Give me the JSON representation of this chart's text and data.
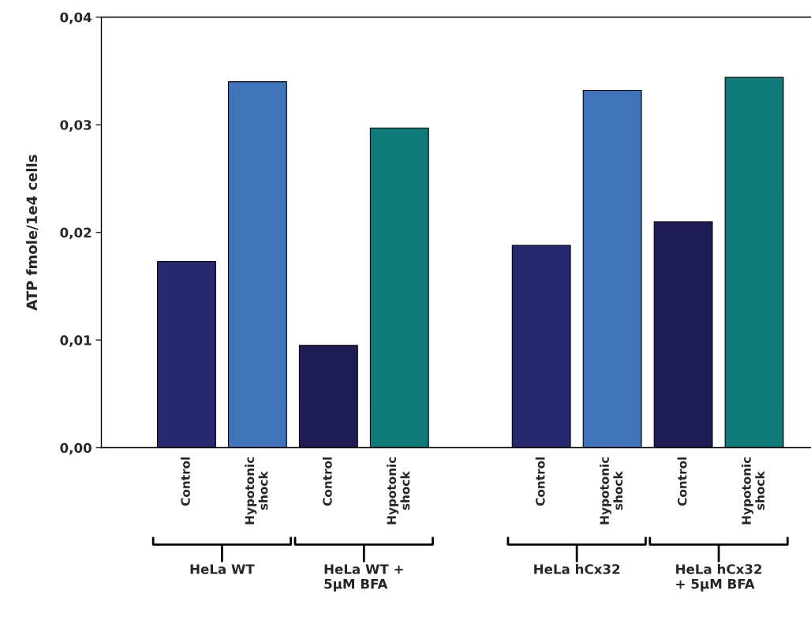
{
  "chart_data": {
    "type": "bar",
    "ylabel": "ATP fmole/1e4 cells",
    "categories": [
      "Control",
      "Hypotonic\nshock",
      "Control",
      "Hypotonic\nshock",
      null,
      "Control",
      "Hypotonic\nshock",
      "Control",
      "Hypotonic\nshock"
    ],
    "values": [
      0.0173,
      0.034,
      0.0095,
      0.0297,
      null,
      0.0188,
      0.0332,
      0.021,
      0.0344
    ],
    "colors": [
      "#27296e",
      "#3f74bb",
      "#1f1c56",
      "#0e7b79",
      null,
      "#27296e",
      "#3f74bb",
      "#1f1c56",
      "#0e7b79"
    ],
    "ylim": [
      0,
      0.04
    ],
    "yticks": [
      {
        "value": 0,
        "label": "0,00"
      },
      {
        "value": 0.01,
        "label": "0,01"
      },
      {
        "value": 0.02,
        "label": "0,02"
      },
      {
        "value": 0.03,
        "label": "0,03"
      },
      {
        "value": 0.04,
        "label": "0,04"
      }
    ],
    "annotations": [
      "HeLa WT",
      "HeLa WT +\n5µM BFA",
      "HeLa hCx32",
      "HeLa hCx32\n+ 5µM BFA"
    ],
    "grid": false,
    "legend": false
  }
}
